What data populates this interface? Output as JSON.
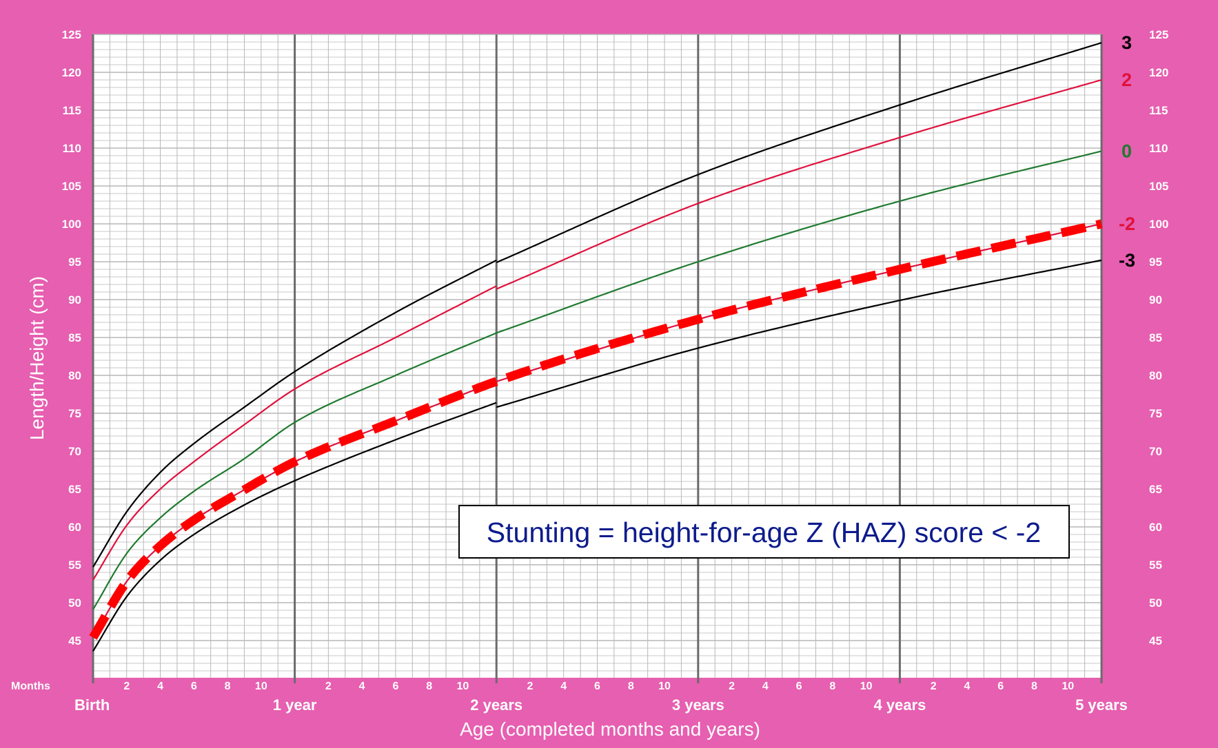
{
  "colors": {
    "background": "#e65fb0",
    "grid": "#b7b7b7",
    "major_grid": "#6b6b6b",
    "z3": "#000000",
    "z2": "#e0103c",
    "z0": "#1f7a2f",
    "zm2": "#e0103c",
    "zm3": "#000000",
    "highlight": "#ff0000",
    "note_text": "#0d1b8c"
  },
  "chart_data": {
    "type": "line",
    "title": "",
    "xlabel": "Age (completed months and years)",
    "ylabel": "Length/Height (cm)",
    "xlim": [
      0,
      60
    ],
    "ylim": [
      40,
      125
    ],
    "y_ticks": [
      45,
      50,
      55,
      60,
      65,
      70,
      75,
      80,
      85,
      90,
      95,
      100,
      105,
      110,
      115,
      120,
      125
    ],
    "months_label": "Months",
    "month_ticks": [
      "2",
      "4",
      "6",
      "8",
      "10"
    ],
    "year_labels": [
      "Birth",
      "1 year",
      "2 years",
      "3 years",
      "4 years",
      "5 years"
    ],
    "grid": true,
    "x": [
      0,
      2,
      4,
      6,
      9,
      12,
      18,
      24,
      36,
      48,
      60
    ],
    "series_break_at": 24,
    "series": [
      {
        "name": "3",
        "values": [
          54.7,
          62.0,
          67.2,
          71.0,
          75.8,
          80.5,
          88.3,
          95.2,
          106.5,
          115.7,
          123.9
        ],
        "values_after_break_start": 94.9
      },
      {
        "name": "2",
        "values": [
          53.0,
          60.2,
          65.0,
          68.6,
          73.5,
          78.2,
          85.0,
          91.8,
          102.7,
          111.4,
          119.0
        ],
        "values_after_break_start": 91.4
      },
      {
        "name": "0",
        "values": [
          49.1,
          56.5,
          61.2,
          64.7,
          69.0,
          73.8,
          80.0,
          85.6,
          95.0,
          103.0,
          109.6
        ],
        "values_after_break_start": 85.6
      },
      {
        "name": "-2",
        "values": [
          45.4,
          52.8,
          57.5,
          60.9,
          64.9,
          68.6,
          74.0,
          79.2,
          87.4,
          94.0,
          100.0
        ],
        "values_after_break_start": 79.2
      },
      {
        "name": "-3",
        "values": [
          43.6,
          50.8,
          55.6,
          59.0,
          62.9,
          66.1,
          71.5,
          76.4,
          83.6,
          89.9,
          95.2
        ],
        "values_after_break_start": 75.8
      }
    ],
    "annotations": [
      "Stunting = height-for-age Z (HAZ) score < -2"
    ]
  }
}
